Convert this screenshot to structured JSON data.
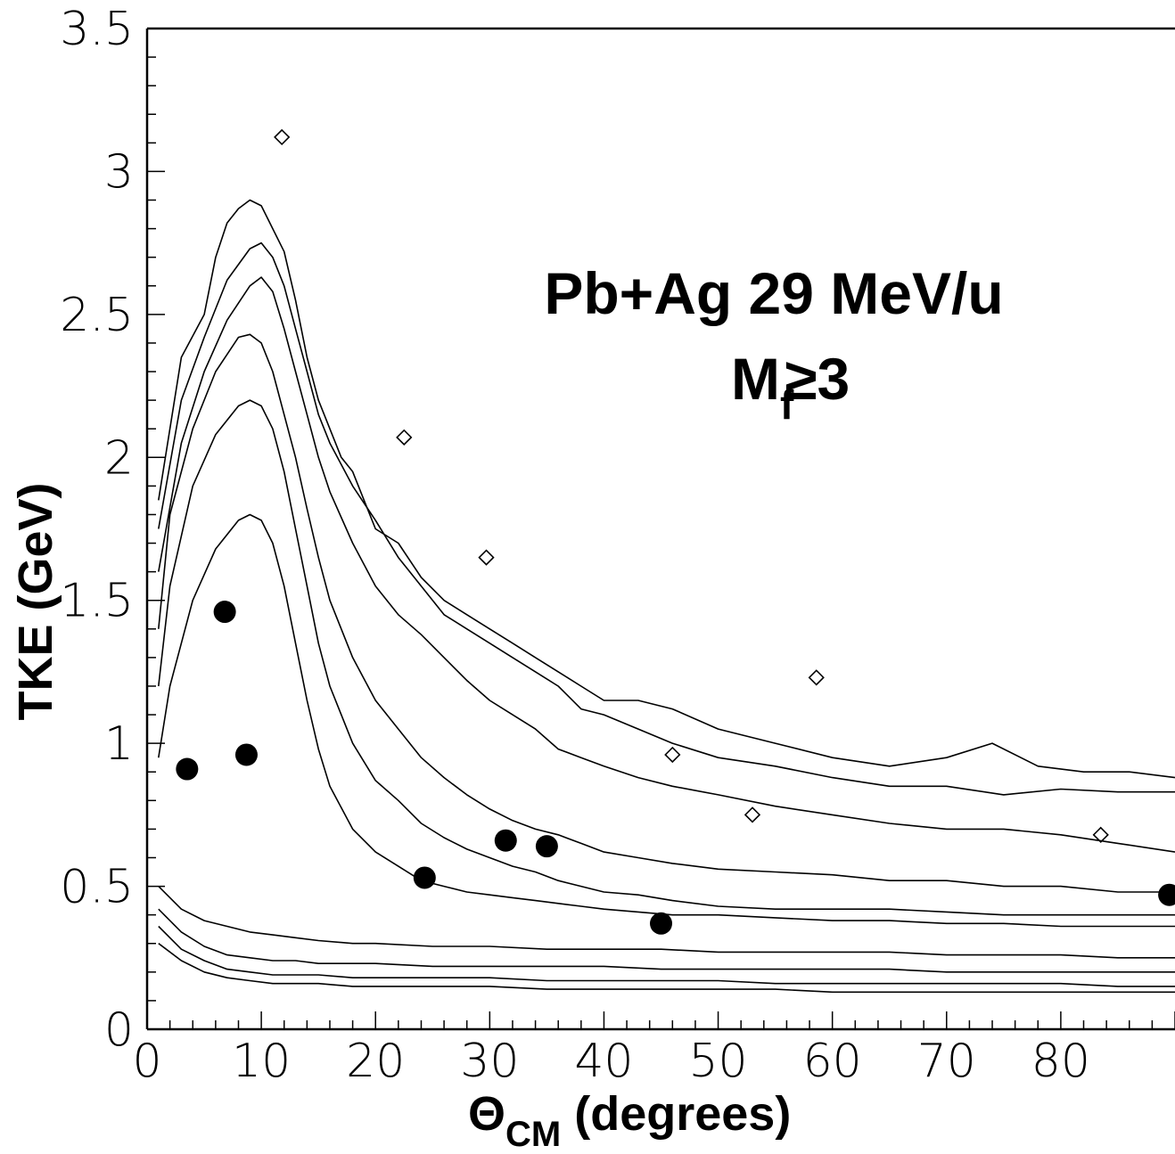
{
  "chart_data": {
    "type": "scatter",
    "title": "",
    "annotation": {
      "line1": "Pb+Ag  29 MeV/u",
      "line2_main": "M",
      "line2_sub": "f",
      "line2_rest": "≥3"
    },
    "xlabel": {
      "main": "Θ",
      "sub": "CM",
      "rest": " (degrees)"
    },
    "ylabel": "TKE (GeV)",
    "xlim": [
      0,
      90
    ],
    "ylim": [
      0,
      3.5
    ],
    "xticks": [
      0,
      10,
      20,
      30,
      40,
      50,
      60,
      70,
      80
    ],
    "xtick_labels": [
      "0",
      "10",
      "20",
      "30",
      "40",
      "50",
      "60",
      "70",
      "80"
    ],
    "yticks": [
      0,
      0.5,
      1,
      1.5,
      2,
      2.5,
      3,
      3.5
    ],
    "ytick_labels": [
      "0",
      "0.5",
      "1",
      "1.5",
      "2",
      "2.5",
      "3",
      "3.5"
    ],
    "grid": false,
    "points": [
      {
        "x": 3.5,
        "y": 0.91
      },
      {
        "x": 6.8,
        "y": 1.46
      },
      {
        "x": 8.7,
        "y": 0.96
      },
      {
        "x": 24.3,
        "y": 0.53
      },
      {
        "x": 31.4,
        "y": 0.66
      },
      {
        "x": 35.0,
        "y": 0.64
      },
      {
        "x": 45.0,
        "y": 0.37
      },
      {
        "x": 89.5,
        "y": 0.47
      }
    ],
    "contours": [
      {
        "level": 1,
        "x": [
          1,
          3,
          5,
          6,
          7,
          8,
          9,
          10,
          11,
          12,
          13,
          14,
          15,
          16,
          17,
          18,
          19,
          20,
          22,
          24,
          26,
          28,
          30,
          32,
          34,
          36,
          38,
          40,
          43,
          46,
          50,
          55,
          60,
          65,
          70,
          74,
          78,
          82,
          86,
          90
        ],
        "y": [
          1.85,
          2.35,
          2.5,
          2.7,
          2.82,
          2.87,
          2.9,
          2.88,
          2.8,
          2.72,
          2.55,
          2.35,
          2.2,
          2.1,
          2.0,
          1.95,
          1.85,
          1.75,
          1.7,
          1.58,
          1.5,
          1.45,
          1.4,
          1.35,
          1.3,
          1.25,
          1.2,
          1.15,
          1.15,
          1.12,
          1.05,
          1.0,
          0.95,
          0.92,
          0.95,
          1.0,
          0.92,
          0.9,
          0.9,
          0.88
        ]
      },
      {
        "level": 2,
        "x": [
          1,
          3,
          5,
          7,
          9,
          10,
          11,
          12,
          13,
          14,
          15,
          16,
          18,
          20,
          22,
          24,
          26,
          28,
          30,
          32,
          34,
          36,
          38,
          40,
          43,
          46,
          50,
          55,
          60,
          65,
          70,
          75,
          80,
          85,
          90
        ],
        "y": [
          1.75,
          2.2,
          2.42,
          2.62,
          2.73,
          2.75,
          2.7,
          2.6,
          2.45,
          2.3,
          2.15,
          2.05,
          1.9,
          1.78,
          1.65,
          1.55,
          1.45,
          1.4,
          1.35,
          1.3,
          1.25,
          1.2,
          1.12,
          1.1,
          1.05,
          1.0,
          0.95,
          0.92,
          0.88,
          0.85,
          0.85,
          0.82,
          0.84,
          0.83,
          0.83
        ]
      },
      {
        "level": 3,
        "x": [
          1,
          3,
          5,
          7,
          9,
          10,
          11,
          12,
          13,
          14,
          15,
          16,
          18,
          20,
          22,
          24,
          26,
          28,
          30,
          32,
          34,
          36,
          38,
          40,
          43,
          46,
          50,
          55,
          60,
          65,
          70,
          75,
          80,
          85,
          90
        ],
        "y": [
          1.6,
          2.05,
          2.3,
          2.48,
          2.6,
          2.63,
          2.58,
          2.45,
          2.3,
          2.15,
          2.0,
          1.88,
          1.7,
          1.55,
          1.45,
          1.38,
          1.3,
          1.22,
          1.15,
          1.1,
          1.05,
          0.98,
          0.95,
          0.92,
          0.88,
          0.85,
          0.82,
          0.78,
          0.75,
          0.72,
          0.7,
          0.7,
          0.68,
          0.65,
          0.62
        ]
      },
      {
        "level": 4,
        "x": [
          1,
          2,
          4,
          6,
          8,
          9,
          10,
          11,
          12,
          13,
          14,
          15,
          16,
          18,
          20,
          22,
          24,
          26,
          28,
          30,
          32,
          34,
          36,
          38,
          40,
          43,
          46,
          50,
          55,
          60,
          65,
          70,
          75,
          80,
          85,
          90
        ],
        "y": [
          1.4,
          1.8,
          2.1,
          2.3,
          2.42,
          2.43,
          2.4,
          2.3,
          2.15,
          2.0,
          1.82,
          1.65,
          1.5,
          1.3,
          1.15,
          1.05,
          0.95,
          0.88,
          0.82,
          0.77,
          0.73,
          0.7,
          0.68,
          0.65,
          0.62,
          0.6,
          0.58,
          0.56,
          0.55,
          0.54,
          0.52,
          0.52,
          0.5,
          0.5,
          0.48,
          0.48
        ]
      },
      {
        "level": 5,
        "x": [
          1,
          2,
          4,
          6,
          8,
          9,
          10,
          11,
          12,
          13,
          14,
          15,
          16,
          18,
          20,
          22,
          24,
          26,
          28,
          30,
          32,
          34,
          36,
          38,
          40,
          43,
          46,
          50,
          55,
          60,
          65,
          70,
          75,
          80,
          85,
          90
        ],
        "y": [
          1.2,
          1.55,
          1.9,
          2.08,
          2.18,
          2.2,
          2.18,
          2.1,
          1.95,
          1.75,
          1.55,
          1.35,
          1.2,
          1.0,
          0.87,
          0.8,
          0.72,
          0.67,
          0.63,
          0.6,
          0.57,
          0.55,
          0.52,
          0.5,
          0.48,
          0.47,
          0.45,
          0.43,
          0.42,
          0.42,
          0.42,
          0.41,
          0.4,
          0.4,
          0.4,
          0.4
        ]
      },
      {
        "level": 6,
        "x": [
          1,
          2,
          4,
          6,
          8,
          9,
          10,
          11,
          12,
          13,
          14,
          15,
          16,
          18,
          20,
          22,
          24,
          26,
          28,
          30,
          32,
          34,
          36,
          38,
          40,
          43,
          46,
          50,
          55,
          60,
          65,
          70,
          75,
          80,
          85,
          90
        ],
        "y": [
          0.95,
          1.2,
          1.5,
          1.68,
          1.78,
          1.8,
          1.78,
          1.7,
          1.55,
          1.35,
          1.15,
          0.98,
          0.85,
          0.7,
          0.62,
          0.57,
          0.52,
          0.5,
          0.48,
          0.47,
          0.46,
          0.45,
          0.44,
          0.43,
          0.42,
          0.41,
          0.4,
          0.4,
          0.39,
          0.38,
          0.38,
          0.37,
          0.37,
          0.36,
          0.36,
          0.36
        ]
      },
      {
        "level": 7,
        "x": [
          1,
          3,
          5,
          7,
          9,
          11,
          13,
          15,
          18,
          20,
          25,
          30,
          35,
          40,
          45,
          50,
          55,
          60,
          65,
          70,
          75,
          80,
          85,
          90
        ],
        "y": [
          0.5,
          0.42,
          0.38,
          0.36,
          0.34,
          0.33,
          0.32,
          0.31,
          0.3,
          0.3,
          0.29,
          0.29,
          0.28,
          0.28,
          0.28,
          0.27,
          0.27,
          0.27,
          0.27,
          0.26,
          0.26,
          0.26,
          0.25,
          0.25
        ]
      },
      {
        "level": 8,
        "x": [
          1,
          3,
          5,
          7,
          9,
          11,
          13,
          15,
          18,
          20,
          25,
          30,
          35,
          40,
          45,
          50,
          55,
          60,
          65,
          70,
          75,
          80,
          85,
          90
        ],
        "y": [
          0.42,
          0.34,
          0.29,
          0.26,
          0.25,
          0.24,
          0.24,
          0.23,
          0.23,
          0.23,
          0.22,
          0.22,
          0.22,
          0.22,
          0.21,
          0.21,
          0.21,
          0.21,
          0.21,
          0.2,
          0.2,
          0.2,
          0.2,
          0.2
        ]
      },
      {
        "level": 9,
        "x": [
          1,
          3,
          5,
          7,
          9,
          11,
          13,
          15,
          18,
          20,
          25,
          30,
          35,
          40,
          45,
          50,
          55,
          60,
          65,
          70,
          75,
          80,
          85,
          90
        ],
        "y": [
          0.36,
          0.28,
          0.24,
          0.21,
          0.2,
          0.19,
          0.19,
          0.19,
          0.18,
          0.18,
          0.18,
          0.18,
          0.17,
          0.17,
          0.17,
          0.17,
          0.16,
          0.16,
          0.16,
          0.16,
          0.16,
          0.16,
          0.15,
          0.15
        ]
      },
      {
        "level": 10,
        "x": [
          1,
          3,
          5,
          7,
          9,
          11,
          13,
          15,
          18,
          20,
          25,
          30,
          35,
          40,
          45,
          50,
          55,
          60,
          65,
          70,
          75,
          80,
          85,
          90
        ],
        "y": [
          0.3,
          0.24,
          0.2,
          0.18,
          0.17,
          0.16,
          0.16,
          0.16,
          0.15,
          0.15,
          0.15,
          0.15,
          0.14,
          0.14,
          0.14,
          0.14,
          0.14,
          0.13,
          0.13,
          0.13,
          0.13,
          0.13,
          0.13,
          0.13
        ]
      }
    ],
    "isolated_markers": [
      {
        "x": 11.8,
        "y": 3.12
      },
      {
        "x": 22.5,
        "y": 2.07
      },
      {
        "x": 29.7,
        "y": 1.65
      },
      {
        "x": 58.6,
        "y": 1.23
      },
      {
        "x": 53.0,
        "y": 0.75
      },
      {
        "x": 46.0,
        "y": 0.96
      },
      {
        "x": 83.5,
        "y": 0.68
      }
    ]
  }
}
